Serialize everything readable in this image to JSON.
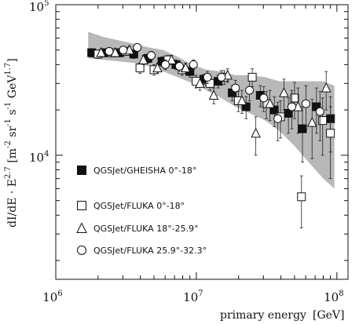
{
  "chart_data": {
    "type": "scatter",
    "title": "",
    "xlabel": {
      "main": "primary energy",
      "unit": "[GeV]"
    },
    "ylabel": {
      "quantity": "dI/dE · E^2.7",
      "units": "[m^-2 sr^-1 s^-1 GeV^1.7]"
    },
    "xscale": "log",
    "yscale": "log",
    "xlim": [
      1000000,
      120000000
    ],
    "ylim": [
      1500,
      100000
    ],
    "x_ticks": [
      {
        "value": 1000000,
        "base": "10",
        "exp": "6"
      },
      {
        "value": 10000000,
        "base": "10",
        "exp": "7"
      },
      {
        "value": 100000000,
        "base": "10",
        "exp": "8"
      }
    ],
    "y_ticks": [
      {
        "value": 10000,
        "base": "10",
        "exp": "4"
      },
      {
        "value": 100000,
        "base": "10",
        "exp": "5"
      }
    ],
    "legend_position": "lower-left",
    "band": {
      "name": "systematic uncertainty",
      "color": "#b8b8b8",
      "x": [
        1700000,
        2200000,
        2800000,
        3600000,
        4600000,
        5800000,
        7400000,
        9400000,
        11800000,
        15000000,
        19000000,
        24000000,
        31000000,
        39000000,
        50000000,
        63000000,
        80000000,
        96000000
      ],
      "upper": [
        66000,
        61000,
        58000,
        55000,
        52000,
        50000,
        45000,
        40000,
        37000,
        36000,
        34000,
        34000,
        33000,
        31000,
        31000,
        31000,
        31000,
        29000
      ],
      "lower": [
        44000,
        43000,
        42000,
        41000,
        39000,
        36000,
        33000,
        30000,
        27000,
        24000,
        21000,
        19000,
        17000,
        14500,
        11500,
        9000,
        7000,
        6000
      ]
    },
    "series": [
      {
        "name": "QGSJet/GHEISHA 0°-18°",
        "marker": "filled-square",
        "x": [
          1800000,
          2260000,
          2850000,
          3590000,
          4520000,
          5690000,
          7160000,
          9010000,
          11300000,
          14300000,
          18000000,
          22600000,
          28500000,
          35900000,
          45200000,
          56900000,
          71600000,
          90100000
        ],
        "y": [
          48000,
          48000,
          48000,
          47000,
          44000,
          42000,
          40000,
          36000,
          32000,
          31000,
          26000,
          21000,
          25000,
          20000,
          19000,
          15000,
          21000,
          17500
        ],
        "err": [
          3000,
          3000,
          3000,
          3000,
          3000,
          3000,
          3000,
          3000,
          2500,
          3000,
          3000,
          3500,
          4000,
          4500,
          5000,
          6000,
          7000,
          7000
        ]
      },
      {
        "name": "QGSJet/FLUKA 0°-18°",
        "marker": "open-square",
        "x": [
          2000000,
          2500000,
          3150000,
          3970000,
          5000000,
          6290000,
          7920000,
          9970000,
          12500000,
          15800000,
          19900000,
          25000000,
          31500000,
          39700000,
          50000000,
          56000000,
          79200000,
          90000000
        ],
        "y": [
          47000,
          48000,
          49000,
          38000,
          37000,
          43000,
          37000,
          31000,
          30000,
          33000,
          23000,
          33000,
          22000,
          18000,
          24000,
          5300,
          17000,
          14000
        ],
        "err": [
          3000,
          3000,
          3000,
          3000,
          3000,
          3000,
          3000,
          3000,
          3000,
          3500,
          3500,
          4500,
          4500,
          5000,
          6500,
          2000,
          7000,
          7000
        ]
      },
      {
        "name": "QGSJet/FLUKA 18°-25.9°",
        "marker": "open-triangle",
        "x": [
          2100000,
          2650000,
          3340000,
          4200000,
          5290000,
          6660000,
          8390000,
          10600000,
          13300000,
          16700000,
          21100000,
          26500000,
          33400000,
          42000000,
          52900000,
          66600000,
          83900000
        ],
        "y": [
          48000,
          48000,
          50000,
          43000,
          38000,
          43000,
          38000,
          30000,
          25000,
          34000,
          23000,
          14000,
          22000,
          26000,
          21000,
          16500,
          28000
        ],
        "err": [
          3000,
          3000,
          3000,
          3000,
          3000,
          3000,
          3000,
          3000,
          3000,
          3500,
          4000,
          4000,
          5000,
          6000,
          7000,
          7000,
          8000
        ]
      },
      {
        "name": "QGSJet/FLUKA 25.9°-32.3°",
        "marker": "open-circle",
        "x": [
          2400000,
          3020000,
          3800000,
          4780000,
          6020000,
          7580000,
          9540000,
          12000000,
          15100000,
          19000000,
          23900000,
          30200000,
          38000000,
          47800000,
          60200000,
          75800000
        ],
        "y": [
          49000,
          50000,
          52000,
          46000,
          40000,
          39000,
          40000,
          33000,
          33000,
          28000,
          27000,
          24000,
          17500,
          21000,
          22000,
          19500
        ],
        "err": [
          3000,
          3000,
          3000,
          3000,
          3000,
          3000,
          3000,
          3000,
          3500,
          3500,
          4000,
          4500,
          5000,
          6000,
          7000,
          7000
        ]
      }
    ]
  }
}
